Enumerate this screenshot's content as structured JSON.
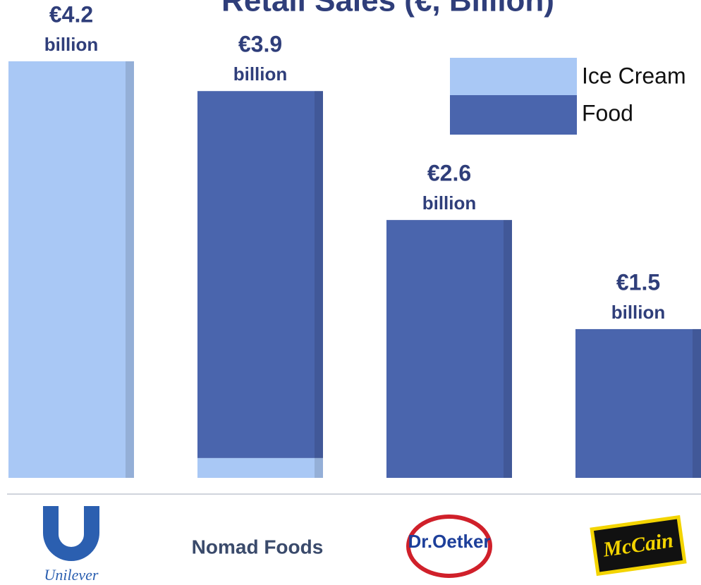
{
  "chart_data": {
    "type": "stacked_bar",
    "title": "Retail Sales (€, Billion)",
    "categories": [
      "Unilever",
      "Nomad Foods",
      "Dr.Oetker",
      "McCain"
    ],
    "series": [
      {
        "name": "Ice Cream",
        "color": "#a9c8f5",
        "values": [
          4.2,
          0.2,
          0,
          0
        ]
      },
      {
        "name": "Food",
        "color": "#4a65ad",
        "values": [
          0,
          3.7,
          2.6,
          1.5
        ]
      }
    ],
    "total_labels": [
      "€4.2",
      "€3.9",
      "€2.6",
      "€1.5"
    ],
    "label_unit": "billion",
    "ylim": [
      0,
      4.2
    ],
    "legend": "top-right"
  }
}
